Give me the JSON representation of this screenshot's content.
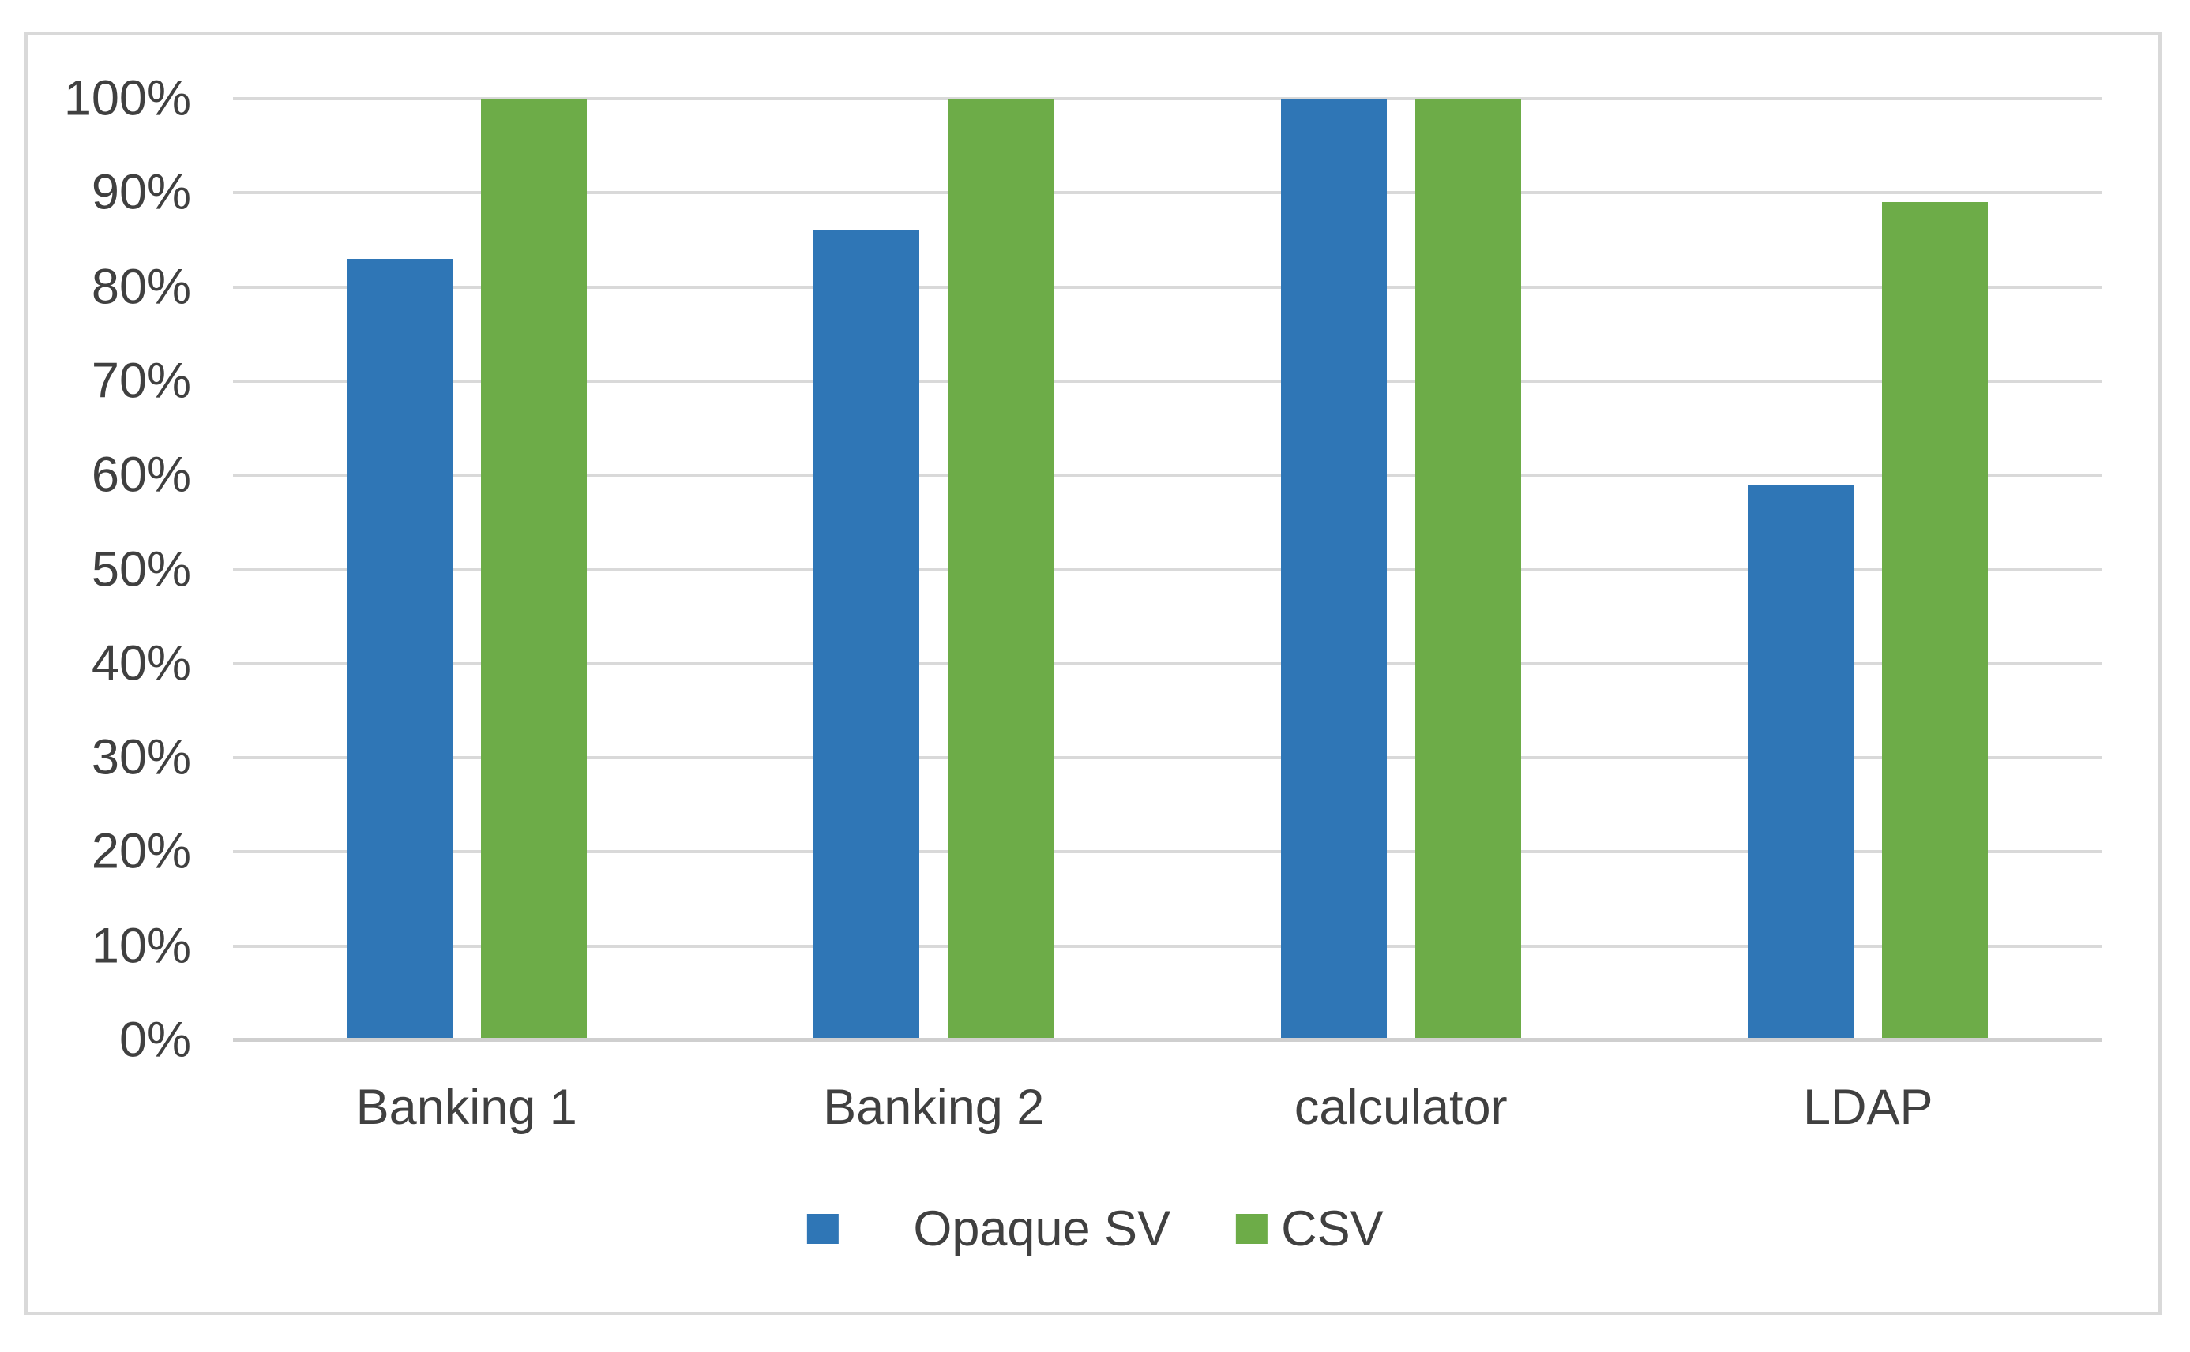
{
  "chart_data": {
    "type": "bar",
    "title": "",
    "xlabel": "",
    "ylabel": "",
    "categories": [
      "Banking 1",
      "Banking 2",
      "calculator",
      "LDAP"
    ],
    "series": [
      {
        "name": "Opaque SV",
        "color": "#2F76B6",
        "values": [
          83,
          86,
          100,
          59
        ]
      },
      {
        "name": "CSV",
        "color": "#6DAC48",
        "values": [
          100,
          100,
          100,
          89
        ]
      }
    ],
    "ylim": [
      0,
      100
    ],
    "yticks": [
      0,
      10,
      20,
      30,
      40,
      50,
      60,
      70,
      80,
      90,
      100
    ],
    "ytick_labels": [
      "0%",
      "10%",
      "20%",
      "30%",
      "40%",
      "50%",
      "60%",
      "70%",
      "80%",
      "90%",
      "100%"
    ],
    "grid": true,
    "legend_position": "bottom-center",
    "value_unit": "percent"
  },
  "styles": {
    "bar_blue": "#2F76B6",
    "bar_green": "#6DAC48",
    "gridline_color": "#D9D9D9",
    "axis_line_color": "#CFCFCF",
    "text_color": "#404040",
    "frame_border_color": "#D9D9D9",
    "background": "#FFFFFF"
  }
}
